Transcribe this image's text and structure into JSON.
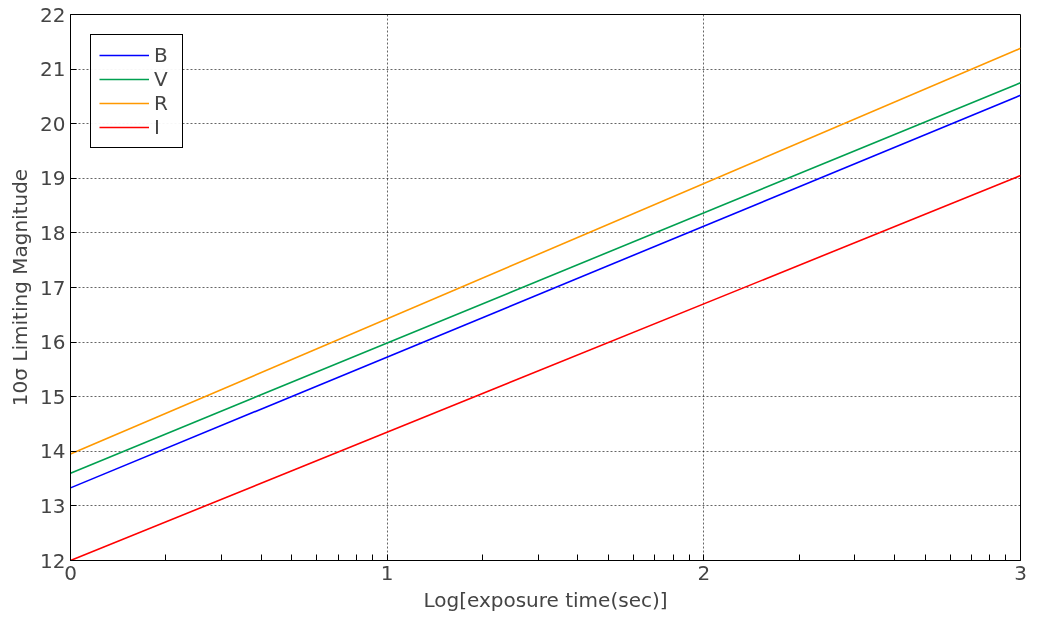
{
  "chart_data": {
    "type": "line",
    "xlabel": "Log[exposure time(sec)]",
    "ylabel": "10σ Limiting Magnitude",
    "xlim": [
      0,
      3
    ],
    "ylim": [
      12,
      22
    ],
    "xticks": [
      0,
      {
        "value": 0.301,
        "label": null
      },
      {
        "value": 0.477,
        "label": null
      },
      {
        "value": 0.602,
        "label": null
      },
      {
        "value": 0.699,
        "label": null
      },
      {
        "value": 0.778,
        "label": null
      },
      {
        "value": 0.845,
        "label": null
      },
      {
        "value": 0.903,
        "label": null
      },
      {
        "value": 0.954,
        "label": null
      },
      1,
      {
        "value": 1.301,
        "label": null
      },
      {
        "value": 1.477,
        "label": null
      },
      {
        "value": 1.602,
        "label": null
      },
      {
        "value": 1.699,
        "label": null
      },
      {
        "value": 1.778,
        "label": null
      },
      {
        "value": 1.845,
        "label": null
      },
      {
        "value": 1.903,
        "label": null
      },
      {
        "value": 1.954,
        "label": null
      },
      2,
      {
        "value": 2.301,
        "label": null
      },
      {
        "value": 2.477,
        "label": null
      },
      {
        "value": 2.602,
        "label": null
      },
      {
        "value": 2.699,
        "label": null
      },
      {
        "value": 2.778,
        "label": null
      },
      {
        "value": 2.845,
        "label": null
      },
      {
        "value": 2.903,
        "label": null
      },
      {
        "value": 2.954,
        "label": null
      },
      3
    ],
    "yticks": [
      12,
      13,
      14,
      15,
      16,
      17,
      18,
      19,
      20,
      21,
      22
    ],
    "grid": true,
    "legend": "top left",
    "line_style": "solid",
    "marker": "none",
    "x": [
      0,
      3
    ],
    "series": [
      {
        "name": "B",
        "color": "#0000ff",
        "values": [
          13.33,
          20.52
        ]
      },
      {
        "name": "V",
        "color": "#00a050",
        "values": [
          13.6,
          20.75
        ]
      },
      {
        "name": "R",
        "color": "#ff9900",
        "values": [
          13.95,
          21.38
        ]
      },
      {
        "name": "I",
        "color": "#ff0000",
        "values": [
          12.0,
          19.05
        ]
      }
    ]
  }
}
